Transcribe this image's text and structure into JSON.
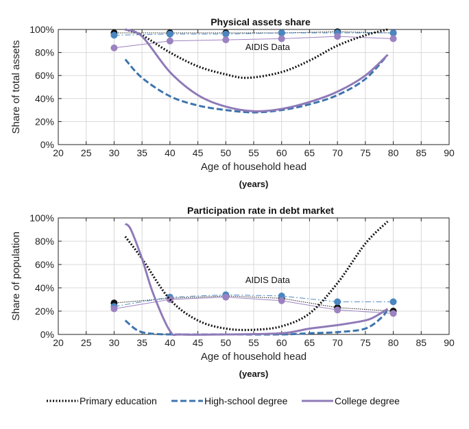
{
  "colors": {
    "primary": "#111111",
    "highschool": "#3d74ad",
    "college": "#8f7ab8",
    "dot_hs": "#4a86c0",
    "dot_college": "#9b82c0"
  },
  "legend": [
    "Primary education",
    "High-school degree",
    "College degree"
  ],
  "chart_data": [
    {
      "type": "line",
      "title": "Physical assets share",
      "xlabel": "Age of household head",
      "xlabel_unit": "(years)",
      "ylabel": "Share of total assets",
      "xlim": [
        20,
        90
      ],
      "ylim": [
        0,
        100
      ],
      "xticks": [
        "20",
        "25",
        "30",
        "35",
        "40",
        "45",
        "50",
        "55",
        "60",
        "65",
        "70",
        "75",
        "80",
        "85",
        "90"
      ],
      "yticks": [
        "0%",
        "20%",
        "40%",
        "60%",
        "80%",
        "100%"
      ],
      "annotation": "AIDIS Data",
      "model": [
        {
          "name": "Primary education",
          "x": [
            32,
            35,
            40,
            45,
            50,
            54,
            60,
            65,
            70,
            75,
            79
          ],
          "y": [
            100,
            95,
            80,
            68,
            61,
            58,
            63,
            73,
            86,
            95,
            100
          ]
        },
        {
          "name": "High-school degree",
          "x": [
            32,
            35,
            40,
            45,
            50,
            55,
            60,
            65,
            70,
            75,
            79
          ],
          "y": [
            74,
            58,
            42,
            34,
            30,
            28,
            30,
            35,
            43,
            57,
            78
          ]
        },
        {
          "name": "College degree",
          "x": [
            32,
            35,
            40,
            45,
            50,
            55,
            60,
            65,
            70,
            75,
            79
          ],
          "y": [
            100,
            94,
            63,
            43,
            33,
            29,
            31,
            37,
            46,
            60,
            78
          ]
        }
      ],
      "aidis": [
        {
          "name": "Primary education",
          "x": [
            30,
            40,
            50,
            60,
            70,
            80
          ],
          "y": [
            97,
            97,
            97,
            97,
            98,
            97
          ]
        },
        {
          "name": "High-school degree",
          "x": [
            30,
            40,
            50,
            60,
            70,
            80
          ],
          "y": [
            95,
            96,
            96,
            97,
            97,
            97
          ]
        },
        {
          "name": "College degree",
          "x": [
            30,
            40,
            50,
            60,
            70,
            80
          ],
          "y": [
            84,
            90,
            91,
            92,
            94,
            92
          ]
        }
      ]
    },
    {
      "type": "line",
      "title": "Participation rate in debt market",
      "xlabel": "Age of household head",
      "xlabel_unit": "(years)",
      "ylabel": "Share of population",
      "xlim": [
        20,
        90
      ],
      "ylim": [
        0,
        100
      ],
      "xticks": [
        "20",
        "25",
        "30",
        "35",
        "40",
        "45",
        "50",
        "55",
        "60",
        "65",
        "70",
        "75",
        "80",
        "85",
        "90"
      ],
      "yticks": [
        "0%",
        "20%",
        "40%",
        "60%",
        "80%",
        "100%"
      ],
      "annotation": "AIDIS Data",
      "model": [
        {
          "name": "Primary education",
          "x": [
            32,
            35,
            40,
            45,
            50,
            55,
            60,
            65,
            70,
            75,
            79
          ],
          "y": [
            84,
            65,
            30,
            12,
            5,
            4,
            7,
            18,
            44,
            78,
            97
          ]
        },
        {
          "name": "High-school degree",
          "x": [
            32,
            34,
            36,
            40,
            50,
            60,
            65,
            70,
            75,
            78,
            79
          ],
          "y": [
            12,
            4,
            1,
            0,
            0,
            0,
            1,
            2,
            5,
            15,
            22
          ]
        },
        {
          "name": "College degree",
          "x": [
            32,
            33,
            35,
            37,
            40,
            42,
            50,
            60,
            65,
            70,
            75,
            77,
            79
          ],
          "y": [
            95,
            90,
            65,
            35,
            3,
            0,
            0,
            1,
            5,
            8,
            12,
            16,
            22
          ]
        }
      ],
      "aidis": [
        {
          "name": "Primary education",
          "x": [
            30,
            40,
            50,
            60,
            70,
            80
          ],
          "y": [
            27,
            31,
            33,
            31,
            23,
            20
          ]
        },
        {
          "name": "High-school degree",
          "x": [
            30,
            40,
            50,
            60,
            70,
            80
          ],
          "y": [
            24,
            32,
            34,
            33,
            28,
            28
          ]
        },
        {
          "name": "College degree",
          "x": [
            30,
            40,
            50,
            60,
            70,
            80
          ],
          "y": [
            22,
            30,
            32,
            29,
            21,
            18
          ]
        }
      ]
    }
  ]
}
